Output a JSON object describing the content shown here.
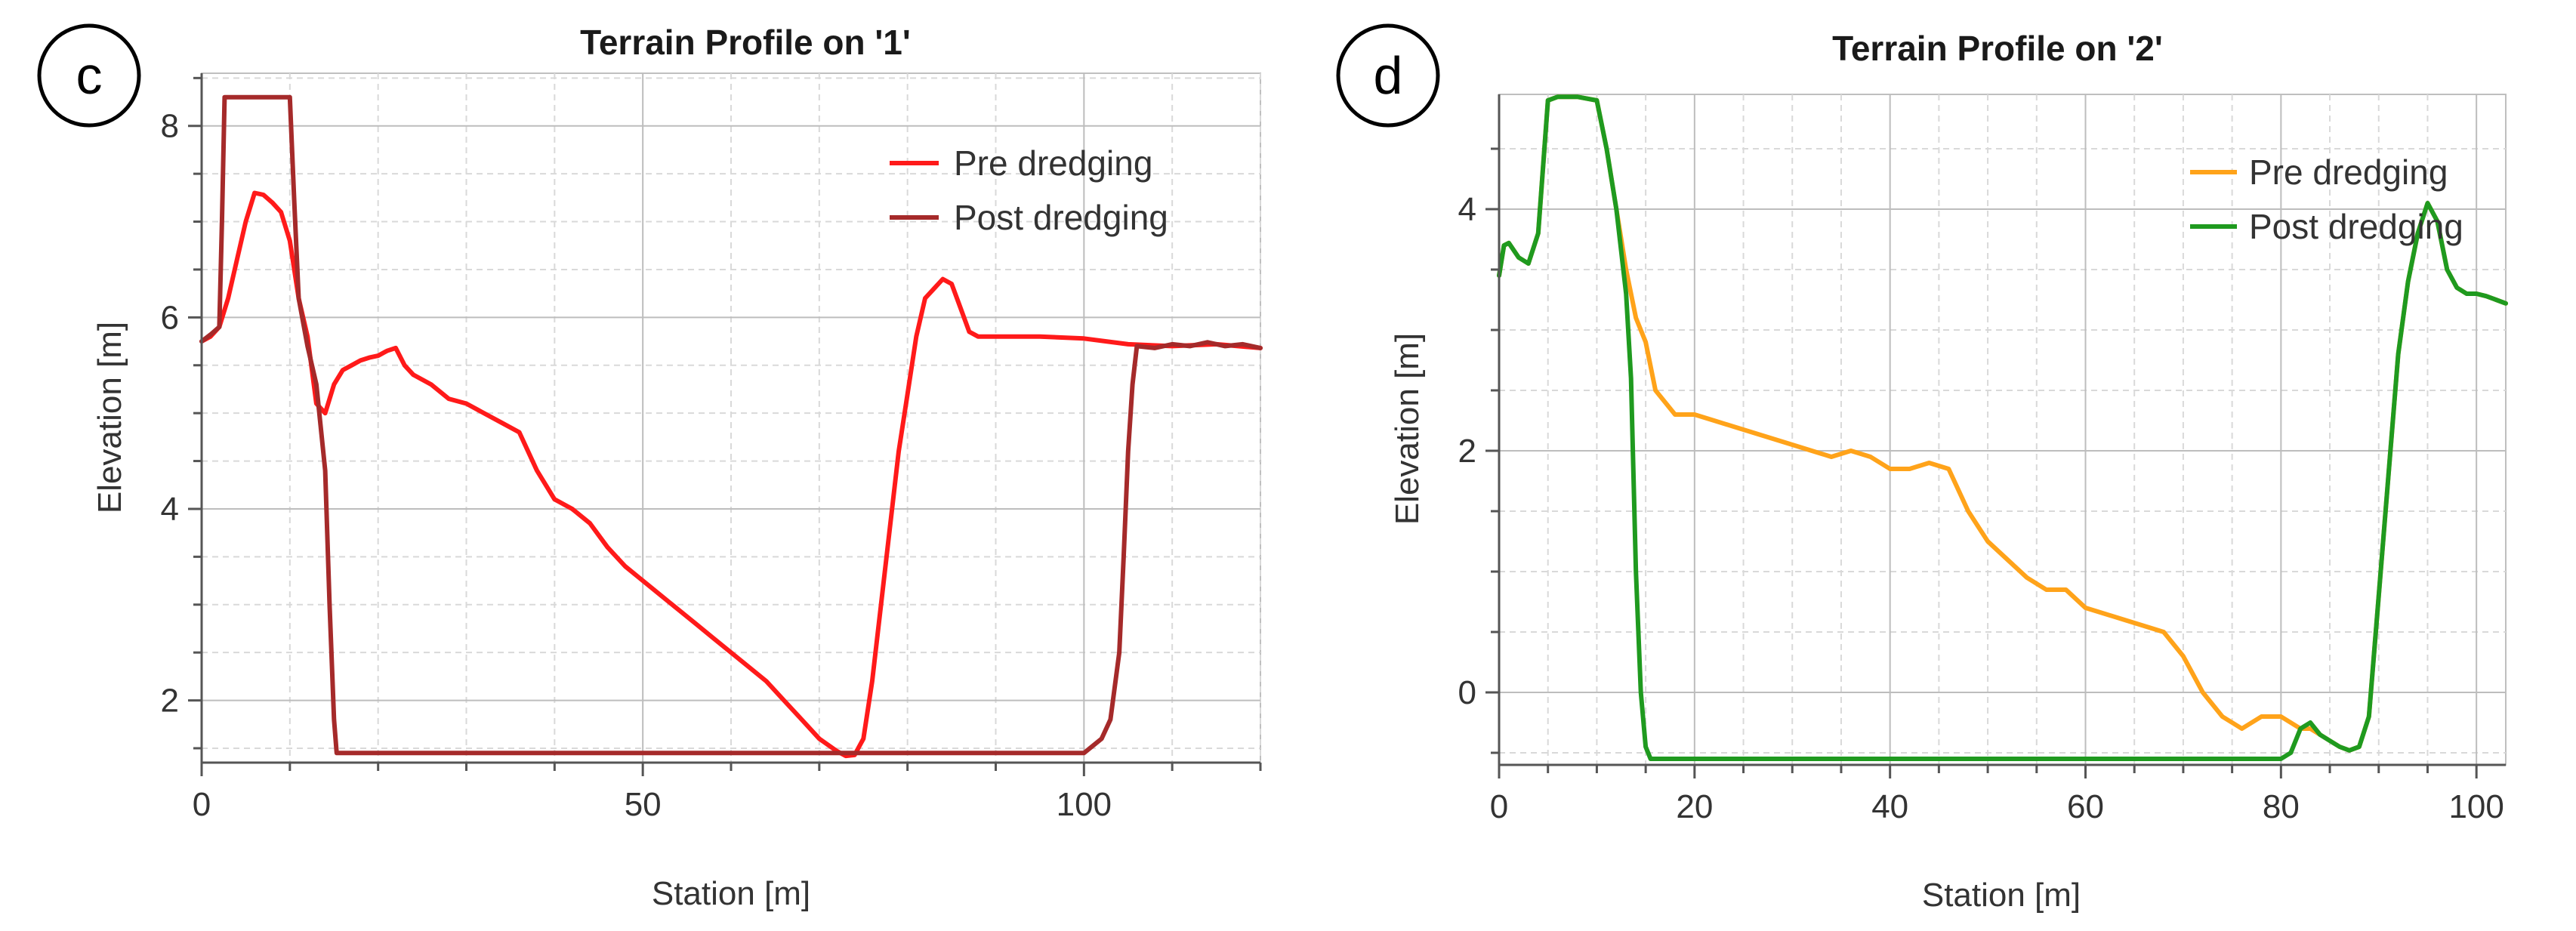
{
  "chart_data": [
    {
      "type": "line",
      "panel_label": "c",
      "title": "Terrain Profile on '1'",
      "xlabel": "Station [m]",
      "ylabel": "Elevation [m]",
      "xlim": [
        0,
        120
      ],
      "ylim": [
        1.35,
        8.55
      ],
      "x_ticks": [
        0,
        50,
        100
      ],
      "y_ticks": [
        2,
        4,
        6,
        8
      ],
      "legend_position": "top-right",
      "series": [
        {
          "name": "Pre dredging",
          "color": "#ff1a1a",
          "x": [
            0,
            1,
            2,
            3,
            4,
            5,
            6,
            7,
            8,
            9,
            10,
            11,
            12,
            13,
            14,
            15,
            16,
            17,
            18,
            19,
            20,
            21,
            22,
            23,
            24,
            26,
            28,
            30,
            32,
            34,
            36,
            37,
            38,
            40,
            42,
            44,
            46,
            48,
            50,
            52,
            54,
            56,
            58,
            60,
            62,
            64,
            66,
            68,
            70,
            72,
            73,
            74,
            75,
            76,
            77,
            78,
            79,
            80,
            81,
            82,
            83,
            84,
            85,
            86,
            87,
            88,
            90,
            95,
            100,
            105,
            110,
            115,
            120
          ],
          "y": [
            5.75,
            5.8,
            5.9,
            6.2,
            6.6,
            7.0,
            7.3,
            7.28,
            7.2,
            7.1,
            6.8,
            6.2,
            5.8,
            5.1,
            5.0,
            5.3,
            5.45,
            5.5,
            5.55,
            5.58,
            5.6,
            5.65,
            5.68,
            5.5,
            5.4,
            5.3,
            5.15,
            5.1,
            5.0,
            4.9,
            4.8,
            4.6,
            4.4,
            4.1,
            4.0,
            3.85,
            3.6,
            3.4,
            3.25,
            3.1,
            2.95,
            2.8,
            2.65,
            2.5,
            2.35,
            2.2,
            2.0,
            1.8,
            1.6,
            1.47,
            1.42,
            1.43,
            1.6,
            2.2,
            3.0,
            3.8,
            4.6,
            5.2,
            5.8,
            6.2,
            6.3,
            6.4,
            6.35,
            6.1,
            5.85,
            5.8,
            5.8,
            5.8,
            5.78,
            5.72,
            5.7,
            5.72,
            5.68
          ]
        },
        {
          "name": "Post dredging",
          "color": "#a52a2a",
          "x": [
            0,
            1,
            2,
            2.3,
            2.6,
            3,
            5,
            7,
            9,
            10,
            10.5,
            11,
            12,
            13,
            14,
            14.5,
            15,
            15.3,
            20,
            40,
            60,
            70,
            80,
            90,
            100,
            102,
            103,
            104,
            104.5,
            105,
            105.5,
            106,
            108,
            110,
            112,
            114,
            116,
            118,
            120
          ],
          "y": [
            5.75,
            5.82,
            5.9,
            7.0,
            8.3,
            8.3,
            8.3,
            8.3,
            8.3,
            8.3,
            7.2,
            6.2,
            5.7,
            5.3,
            4.4,
            3.0,
            1.8,
            1.45,
            1.45,
            1.45,
            1.45,
            1.45,
            1.45,
            1.45,
            1.45,
            1.6,
            1.8,
            2.5,
            3.5,
            4.6,
            5.3,
            5.7,
            5.68,
            5.72,
            5.7,
            5.74,
            5.7,
            5.72,
            5.68
          ]
        }
      ]
    },
    {
      "type": "line",
      "panel_label": "d",
      "title": "Terrain Profile on '2'",
      "xlabel": "Station [m]",
      "ylabel": "Elevation [m]",
      "xlim": [
        0,
        103
      ],
      "ylim": [
        -0.6,
        4.95
      ],
      "x_ticks": [
        0,
        20,
        40,
        60,
        80,
        100
      ],
      "y_ticks": [
        0,
        2,
        4
      ],
      "legend_position": "top-right",
      "series": [
        {
          "name": "Pre dredging",
          "color": "#ffa31a",
          "x": [
            0,
            0.5,
            1,
            2,
            3,
            4,
            5,
            6,
            8,
            10,
            11,
            12,
            13,
            14,
            15,
            16,
            18,
            20,
            22,
            24,
            26,
            28,
            30,
            32,
            34,
            36,
            38,
            40,
            42,
            44,
            46,
            48,
            50,
            52,
            54,
            56,
            58,
            60,
            62,
            64,
            66,
            68,
            70,
            72,
            74,
            76,
            78,
            80,
            82,
            83,
            84,
            85,
            86,
            87,
            88,
            89,
            90,
            91,
            92,
            93,
            94,
            95,
            96,
            97,
            98,
            99,
            100,
            101,
            102,
            103
          ],
          "y": [
            3.45,
            3.7,
            3.72,
            3.6,
            3.55,
            3.8,
            4.9,
            4.93,
            4.93,
            4.9,
            4.5,
            4.0,
            3.5,
            3.1,
            2.9,
            2.5,
            2.3,
            2.3,
            2.25,
            2.2,
            2.15,
            2.1,
            2.05,
            2.0,
            1.95,
            2.0,
            1.95,
            1.85,
            1.85,
            1.9,
            1.85,
            1.5,
            1.25,
            1.1,
            0.95,
            0.85,
            0.85,
            0.7,
            0.65,
            0.6,
            0.55,
            0.5,
            0.3,
            0.0,
            -0.2,
            -0.3,
            -0.2,
            -0.2,
            -0.3,
            -0.3,
            -0.35,
            -0.4,
            -0.45,
            -0.48,
            -0.45,
            -0.2,
            0.8,
            1.8,
            2.8,
            3.4,
            3.8,
            4.05,
            3.9,
            3.5,
            3.35,
            3.3,
            3.3,
            3.28,
            3.25,
            3.22
          ]
        },
        {
          "name": "Post dredging",
          "color": "#1f9a1f",
          "x": [
            0,
            0.5,
            1,
            2,
            3,
            4,
            5,
            6,
            8,
            10,
            11,
            12,
            13,
            13.5,
            14,
            14.5,
            15,
            15.5,
            16,
            20,
            40,
            60,
            70,
            80,
            81,
            82,
            83,
            84,
            85,
            86,
            87,
            88,
            89,
            90,
            91,
            92,
            93,
            94,
            95,
            96,
            97,
            98,
            99,
            100,
            101,
            102,
            103
          ],
          "y": [
            3.45,
            3.7,
            3.72,
            3.6,
            3.55,
            3.8,
            4.9,
            4.93,
            4.93,
            4.9,
            4.5,
            4.0,
            3.3,
            2.6,
            1.0,
            0.0,
            -0.45,
            -0.55,
            -0.55,
            -0.55,
            -0.55,
            -0.55,
            -0.55,
            -0.55,
            -0.5,
            -0.3,
            -0.25,
            -0.35,
            -0.4,
            -0.45,
            -0.48,
            -0.45,
            -0.2,
            0.8,
            1.8,
            2.8,
            3.4,
            3.8,
            4.05,
            3.9,
            3.5,
            3.35,
            3.3,
            3.3,
            3.28,
            3.25,
            3.22
          ]
        }
      ]
    }
  ]
}
